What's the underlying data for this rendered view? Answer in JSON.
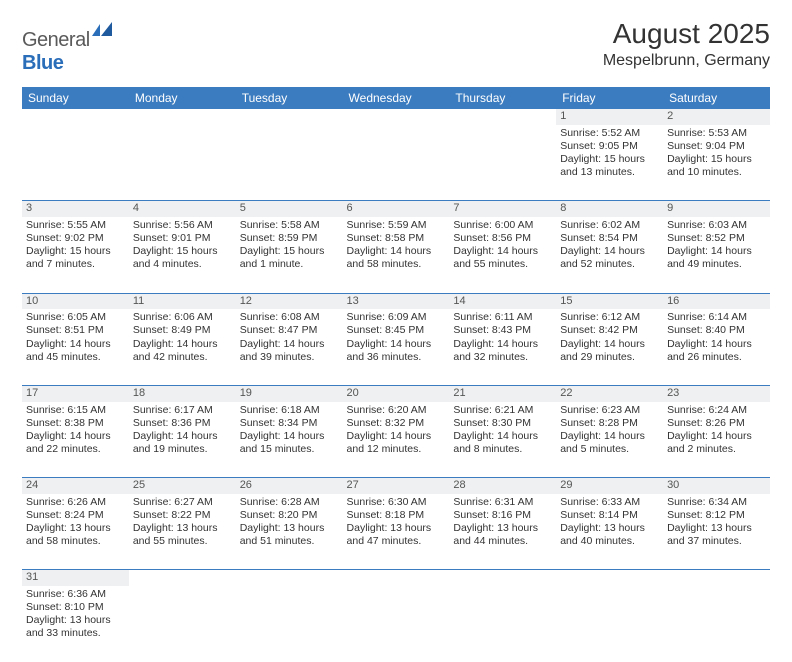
{
  "logo": {
    "text1": "General",
    "text2": "Blue"
  },
  "title": "August 2025",
  "location": "Mespelbrunn, Germany",
  "colors": {
    "header_bg": "#3b7bbf",
    "header_fg": "#ffffff",
    "daynum_bg": "#eef0f1",
    "row_divider": "#3b7bbf",
    "text": "#333333",
    "logo_gray": "#5a5a5a",
    "logo_blue": "#2a6db8"
  },
  "typography": {
    "title_fontsize": 28,
    "location_fontsize": 16,
    "header_fontsize": 12,
    "cell_fontsize": 10.5,
    "daynum_fontsize": 11
  },
  "days_of_week": [
    "Sunday",
    "Monday",
    "Tuesday",
    "Wednesday",
    "Thursday",
    "Friday",
    "Saturday"
  ],
  "weeks": [
    [
      null,
      null,
      null,
      null,
      null,
      {
        "d": "1",
        "sr": "Sunrise: 5:52 AM",
        "ss": "Sunset: 9:05 PM",
        "dl1": "Daylight: 15 hours",
        "dl2": "and 13 minutes."
      },
      {
        "d": "2",
        "sr": "Sunrise: 5:53 AM",
        "ss": "Sunset: 9:04 PM",
        "dl1": "Daylight: 15 hours",
        "dl2": "and 10 minutes."
      }
    ],
    [
      {
        "d": "3",
        "sr": "Sunrise: 5:55 AM",
        "ss": "Sunset: 9:02 PM",
        "dl1": "Daylight: 15 hours",
        "dl2": "and 7 minutes."
      },
      {
        "d": "4",
        "sr": "Sunrise: 5:56 AM",
        "ss": "Sunset: 9:01 PM",
        "dl1": "Daylight: 15 hours",
        "dl2": "and 4 minutes."
      },
      {
        "d": "5",
        "sr": "Sunrise: 5:58 AM",
        "ss": "Sunset: 8:59 PM",
        "dl1": "Daylight: 15 hours",
        "dl2": "and 1 minute."
      },
      {
        "d": "6",
        "sr": "Sunrise: 5:59 AM",
        "ss": "Sunset: 8:58 PM",
        "dl1": "Daylight: 14 hours",
        "dl2": "and 58 minutes."
      },
      {
        "d": "7",
        "sr": "Sunrise: 6:00 AM",
        "ss": "Sunset: 8:56 PM",
        "dl1": "Daylight: 14 hours",
        "dl2": "and 55 minutes."
      },
      {
        "d": "8",
        "sr": "Sunrise: 6:02 AM",
        "ss": "Sunset: 8:54 PM",
        "dl1": "Daylight: 14 hours",
        "dl2": "and 52 minutes."
      },
      {
        "d": "9",
        "sr": "Sunrise: 6:03 AM",
        "ss": "Sunset: 8:52 PM",
        "dl1": "Daylight: 14 hours",
        "dl2": "and 49 minutes."
      }
    ],
    [
      {
        "d": "10",
        "sr": "Sunrise: 6:05 AM",
        "ss": "Sunset: 8:51 PM",
        "dl1": "Daylight: 14 hours",
        "dl2": "and 45 minutes."
      },
      {
        "d": "11",
        "sr": "Sunrise: 6:06 AM",
        "ss": "Sunset: 8:49 PM",
        "dl1": "Daylight: 14 hours",
        "dl2": "and 42 minutes."
      },
      {
        "d": "12",
        "sr": "Sunrise: 6:08 AM",
        "ss": "Sunset: 8:47 PM",
        "dl1": "Daylight: 14 hours",
        "dl2": "and 39 minutes."
      },
      {
        "d": "13",
        "sr": "Sunrise: 6:09 AM",
        "ss": "Sunset: 8:45 PM",
        "dl1": "Daylight: 14 hours",
        "dl2": "and 36 minutes."
      },
      {
        "d": "14",
        "sr": "Sunrise: 6:11 AM",
        "ss": "Sunset: 8:43 PM",
        "dl1": "Daylight: 14 hours",
        "dl2": "and 32 minutes."
      },
      {
        "d": "15",
        "sr": "Sunrise: 6:12 AM",
        "ss": "Sunset: 8:42 PM",
        "dl1": "Daylight: 14 hours",
        "dl2": "and 29 minutes."
      },
      {
        "d": "16",
        "sr": "Sunrise: 6:14 AM",
        "ss": "Sunset: 8:40 PM",
        "dl1": "Daylight: 14 hours",
        "dl2": "and 26 minutes."
      }
    ],
    [
      {
        "d": "17",
        "sr": "Sunrise: 6:15 AM",
        "ss": "Sunset: 8:38 PM",
        "dl1": "Daylight: 14 hours",
        "dl2": "and 22 minutes."
      },
      {
        "d": "18",
        "sr": "Sunrise: 6:17 AM",
        "ss": "Sunset: 8:36 PM",
        "dl1": "Daylight: 14 hours",
        "dl2": "and 19 minutes."
      },
      {
        "d": "19",
        "sr": "Sunrise: 6:18 AM",
        "ss": "Sunset: 8:34 PM",
        "dl1": "Daylight: 14 hours",
        "dl2": "and 15 minutes."
      },
      {
        "d": "20",
        "sr": "Sunrise: 6:20 AM",
        "ss": "Sunset: 8:32 PM",
        "dl1": "Daylight: 14 hours",
        "dl2": "and 12 minutes."
      },
      {
        "d": "21",
        "sr": "Sunrise: 6:21 AM",
        "ss": "Sunset: 8:30 PM",
        "dl1": "Daylight: 14 hours",
        "dl2": "and 8 minutes."
      },
      {
        "d": "22",
        "sr": "Sunrise: 6:23 AM",
        "ss": "Sunset: 8:28 PM",
        "dl1": "Daylight: 14 hours",
        "dl2": "and 5 minutes."
      },
      {
        "d": "23",
        "sr": "Sunrise: 6:24 AM",
        "ss": "Sunset: 8:26 PM",
        "dl1": "Daylight: 14 hours",
        "dl2": "and 2 minutes."
      }
    ],
    [
      {
        "d": "24",
        "sr": "Sunrise: 6:26 AM",
        "ss": "Sunset: 8:24 PM",
        "dl1": "Daylight: 13 hours",
        "dl2": "and 58 minutes."
      },
      {
        "d": "25",
        "sr": "Sunrise: 6:27 AM",
        "ss": "Sunset: 8:22 PM",
        "dl1": "Daylight: 13 hours",
        "dl2": "and 55 minutes."
      },
      {
        "d": "26",
        "sr": "Sunrise: 6:28 AM",
        "ss": "Sunset: 8:20 PM",
        "dl1": "Daylight: 13 hours",
        "dl2": "and 51 minutes."
      },
      {
        "d": "27",
        "sr": "Sunrise: 6:30 AM",
        "ss": "Sunset: 8:18 PM",
        "dl1": "Daylight: 13 hours",
        "dl2": "and 47 minutes."
      },
      {
        "d": "28",
        "sr": "Sunrise: 6:31 AM",
        "ss": "Sunset: 8:16 PM",
        "dl1": "Daylight: 13 hours",
        "dl2": "and 44 minutes."
      },
      {
        "d": "29",
        "sr": "Sunrise: 6:33 AM",
        "ss": "Sunset: 8:14 PM",
        "dl1": "Daylight: 13 hours",
        "dl2": "and 40 minutes."
      },
      {
        "d": "30",
        "sr": "Sunrise: 6:34 AM",
        "ss": "Sunset: 8:12 PM",
        "dl1": "Daylight: 13 hours",
        "dl2": "and 37 minutes."
      }
    ],
    [
      {
        "d": "31",
        "sr": "Sunrise: 6:36 AM",
        "ss": "Sunset: 8:10 PM",
        "dl1": "Daylight: 13 hours",
        "dl2": "and 33 minutes."
      },
      null,
      null,
      null,
      null,
      null,
      null
    ]
  ]
}
